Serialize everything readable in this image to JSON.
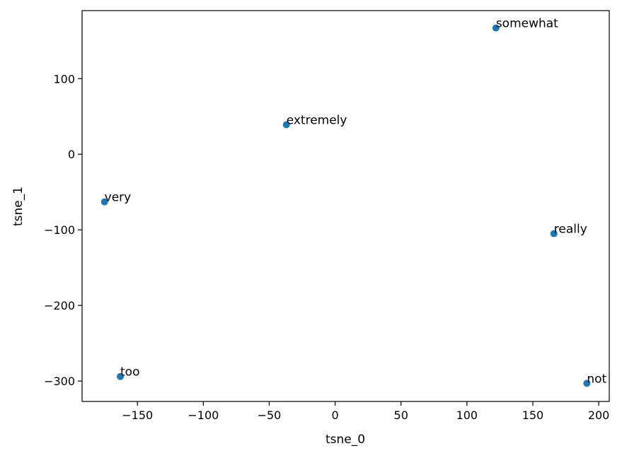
{
  "chart_data": {
    "type": "scatter",
    "title": "",
    "xlabel": "tsne_0",
    "ylabel": "tsne_1",
    "xlim": [
      -192,
      208
    ],
    "ylim": [
      -327,
      190
    ],
    "xticks": [
      -150,
      -100,
      -50,
      0,
      50,
      100,
      150,
      200
    ],
    "yticks": [
      -300,
      -200,
      -100,
      0,
      100
    ],
    "xtick_labels": [
      "−150",
      "−100",
      "−50",
      "0",
      "50",
      "100",
      "150",
      "200"
    ],
    "ytick_labels": [
      "−300",
      "−200",
      "−100",
      "0",
      "100"
    ],
    "grid": false,
    "marker_color": "#1f77b4",
    "points": [
      {
        "label": "somewhat",
        "x": 122,
        "y": 167
      },
      {
        "label": "extremely",
        "x": -37,
        "y": 39
      },
      {
        "label": "very",
        "x": -175,
        "y": -63
      },
      {
        "label": "really",
        "x": 166,
        "y": -105
      },
      {
        "label": "too",
        "x": -163,
        "y": -294
      },
      {
        "label": "not",
        "x": 191,
        "y": -303
      }
    ]
  }
}
